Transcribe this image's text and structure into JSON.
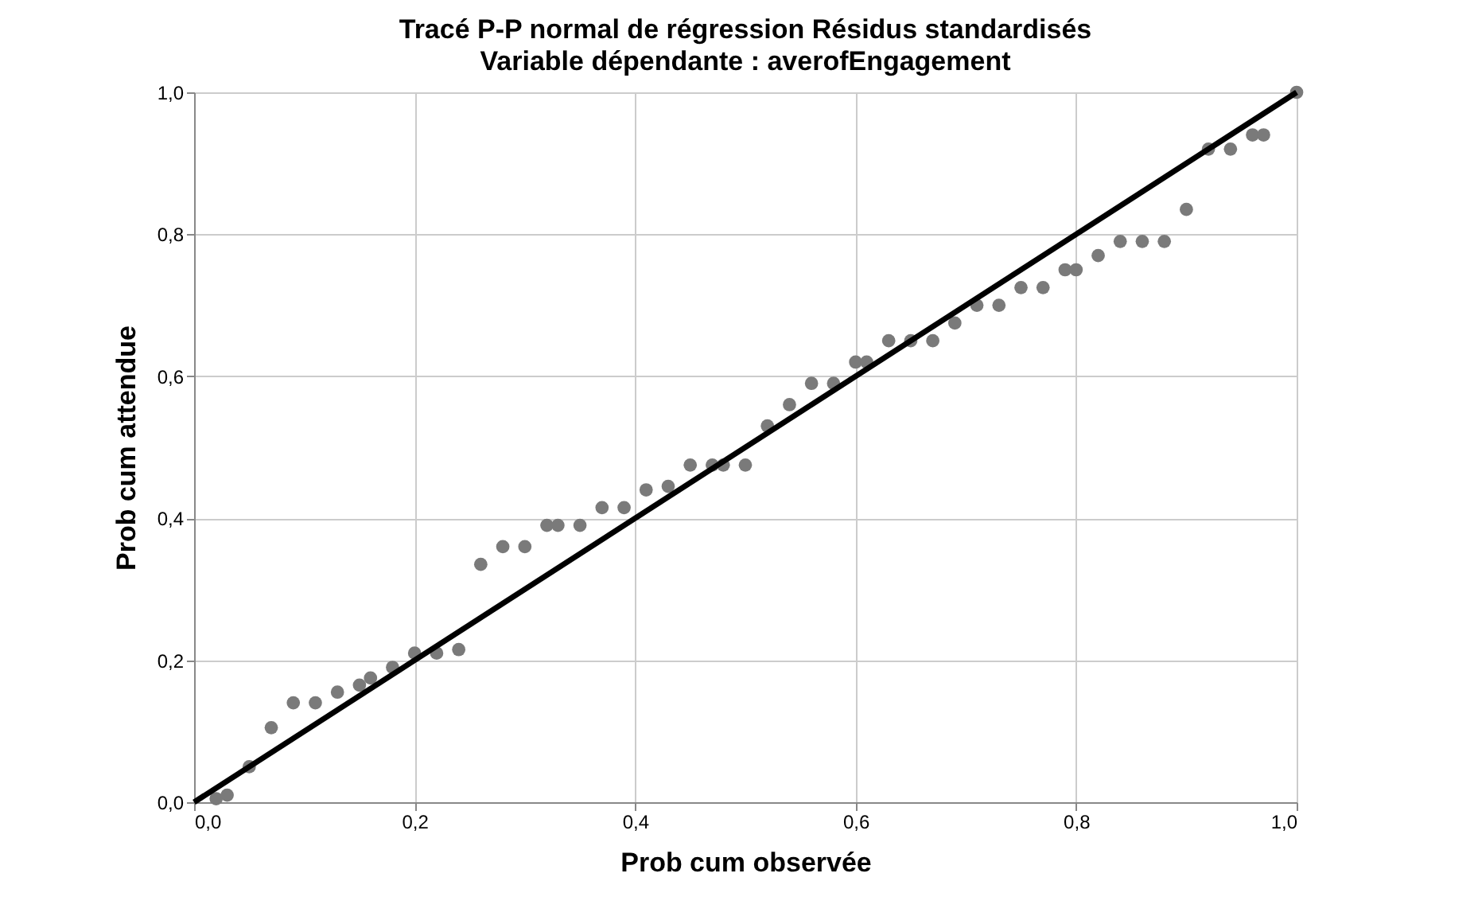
{
  "chart_data": {
    "type": "scatter",
    "title": "Tracé P-P normal de régression Résidus standardisés",
    "subtitle": "Variable dépendante : averofEngagement",
    "xlabel": "Prob cum observée",
    "ylabel": "Prob cum attendue",
    "xlim": [
      0,
      1
    ],
    "ylim": [
      0,
      1
    ],
    "xticks": [
      {
        "value": 0,
        "label": "0,0"
      },
      {
        "value": 0.2,
        "label": "0,2"
      },
      {
        "value": 0.4,
        "label": "0,4"
      },
      {
        "value": 0.6,
        "label": "0,6"
      },
      {
        "value": 0.8,
        "label": "0,8"
      },
      {
        "value": 1,
        "label": "1,0"
      }
    ],
    "yticks": [
      {
        "value": 0,
        "label": "0,0"
      },
      {
        "value": 0.2,
        "label": "0,2"
      },
      {
        "value": 0.4,
        "label": "0,4"
      },
      {
        "value": 0.6,
        "label": "0,6"
      },
      {
        "value": 0.8,
        "label": "0,8"
      },
      {
        "value": 1,
        "label": "1,0"
      }
    ],
    "grid": true,
    "marker": "circle",
    "series": [
      {
        "color": "#7a7a7a",
        "x": [
          0.02,
          0.03,
          0.05,
          0.07,
          0.09,
          0.11,
          0.13,
          0.15,
          0.16,
          0.18,
          0.2,
          0.22,
          0.24,
          0.26,
          0.28,
          0.3,
          0.32,
          0.33,
          0.35,
          0.37,
          0.39,
          0.41,
          0.43,
          0.45,
          0.47,
          0.48,
          0.5,
          0.52,
          0.54,
          0.56,
          0.58,
          0.6,
          0.61,
          0.63,
          0.65,
          0.67,
          0.69,
          0.71,
          0.73,
          0.75,
          0.77,
          0.79,
          0.8,
          0.82,
          0.84,
          0.86,
          0.88,
          0.9,
          0.92,
          0.94,
          0.96,
          0.97,
          1.0
        ],
        "values": [
          0.005,
          0.01,
          0.05,
          0.105,
          0.14,
          0.14,
          0.155,
          0.165,
          0.175,
          0.19,
          0.21,
          0.21,
          0.215,
          0.335,
          0.36,
          0.36,
          0.39,
          0.39,
          0.39,
          0.415,
          0.415,
          0.44,
          0.445,
          0.475,
          0.475,
          0.475,
          0.475,
          0.53,
          0.56,
          0.59,
          0.59,
          0.62,
          0.62,
          0.65,
          0.65,
          0.65,
          0.675,
          0.7,
          0.7,
          0.725,
          0.725,
          0.75,
          0.75,
          0.77,
          0.79,
          0.79,
          0.79,
          0.835,
          0.92,
          0.92,
          0.94,
          0.94,
          1.0
        ]
      },
      {
        "type": "line",
        "color": "#000000",
        "marker": "none",
        "line_style": "solid",
        "x": [
          0,
          1
        ],
        "values": [
          0,
          1
        ]
      }
    ]
  }
}
